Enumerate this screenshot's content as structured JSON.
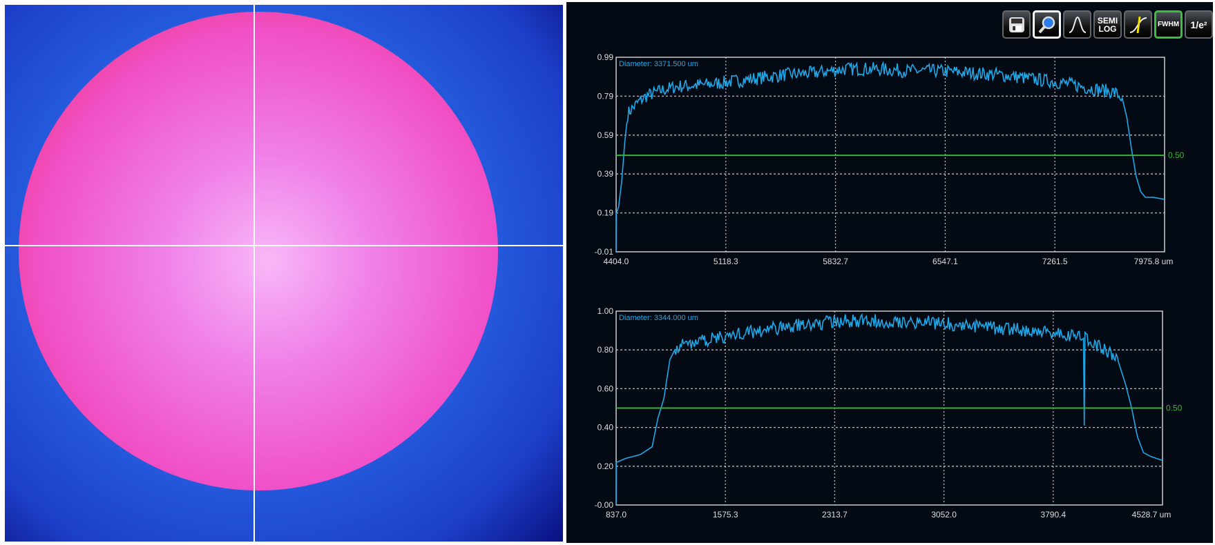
{
  "toolbar": {
    "buttons": [
      {
        "name": "save",
        "icon": "floppy-disk-icon",
        "label": ""
      },
      {
        "name": "zoom",
        "icon": "magnifier-icon",
        "label": "",
        "active": true
      },
      {
        "name": "gaussian",
        "icon": "gaussian-curve-icon",
        "label": ""
      },
      {
        "name": "semilog",
        "label": "SEMI LOG"
      },
      {
        "name": "edge",
        "icon": "edge-cursor-icon",
        "label": ""
      },
      {
        "name": "fwhm",
        "label": "FWHM",
        "on": true
      },
      {
        "name": "one-over-e2",
        "label": "1/e²"
      }
    ]
  },
  "colors": {
    "trace": "#1ea8e8",
    "threshold": "#3bb33b",
    "grid": "#bbbbbb",
    "background": "#040a14"
  },
  "chart_data": [
    {
      "type": "line",
      "annotation": "Diameter: 3371.500 um",
      "x_ticks": [
        "4404.0",
        "5118.3",
        "5832.7",
        "6547.1",
        "7261.5",
        "7975.8 um"
      ],
      "y_ticks": [
        "-0.01",
        "0.19",
        "0.39",
        "0.59",
        "0.79",
        "0.99"
      ],
      "xlim": [
        4404.0,
        7975.8
      ],
      "ylim": [
        -0.01,
        0.99
      ],
      "threshold": 0.5,
      "threshold_label": "0.50",
      "grid": true,
      "x": [
        4404,
        4406,
        4420,
        4440,
        4460,
        4480,
        4500,
        4550,
        4600,
        4700,
        4800,
        5000,
        5100,
        5300,
        5500,
        5700,
        5900,
        6100,
        6300,
        6500,
        6700,
        6900,
        7100,
        7300,
        7500,
        7650,
        7700,
        7730,
        7760,
        7790,
        7820,
        7850,
        7900,
        7975
      ],
      "y": [
        -0.01,
        0.19,
        0.22,
        0.35,
        0.55,
        0.7,
        0.72,
        0.76,
        0.79,
        0.82,
        0.84,
        0.85,
        0.86,
        0.88,
        0.9,
        0.91,
        0.93,
        0.93,
        0.92,
        0.92,
        0.91,
        0.9,
        0.88,
        0.86,
        0.83,
        0.81,
        0.78,
        0.68,
        0.52,
        0.38,
        0.3,
        0.27,
        0.27,
        0.26
      ]
    },
    {
      "type": "line",
      "annotation": "Diameter: 3344.000 um",
      "x_ticks": [
        "837.0",
        "1575.3",
        "2313.7",
        "3052.0",
        "3790.4",
        "4528.7 um"
      ],
      "y_ticks": [
        "-0.00",
        "0.20",
        "0.40",
        "0.60",
        "0.80",
        "1.00"
      ],
      "xlim": [
        837.0,
        4528.7
      ],
      "ylim": [
        0.0,
        1.0
      ],
      "threshold": 0.5,
      "threshold_label": "0.50",
      "grid": true,
      "x": [
        837,
        839,
        900,
        1000,
        1080,
        1120,
        1160,
        1200,
        1240,
        1300,
        1500,
        1800,
        2100,
        2400,
        2700,
        3000,
        3300,
        3600,
        3900,
        3995,
        4000,
        4005,
        4100,
        4180,
        4230,
        4280,
        4320,
        4360,
        4400,
        4450,
        4528
      ],
      "y": [
        0.0,
        0.22,
        0.24,
        0.26,
        0.3,
        0.45,
        0.55,
        0.75,
        0.81,
        0.83,
        0.86,
        0.9,
        0.93,
        0.95,
        0.95,
        0.94,
        0.92,
        0.9,
        0.88,
        0.86,
        0.41,
        0.86,
        0.82,
        0.78,
        0.74,
        0.62,
        0.5,
        0.35,
        0.27,
        0.25,
        0.23
      ]
    }
  ]
}
